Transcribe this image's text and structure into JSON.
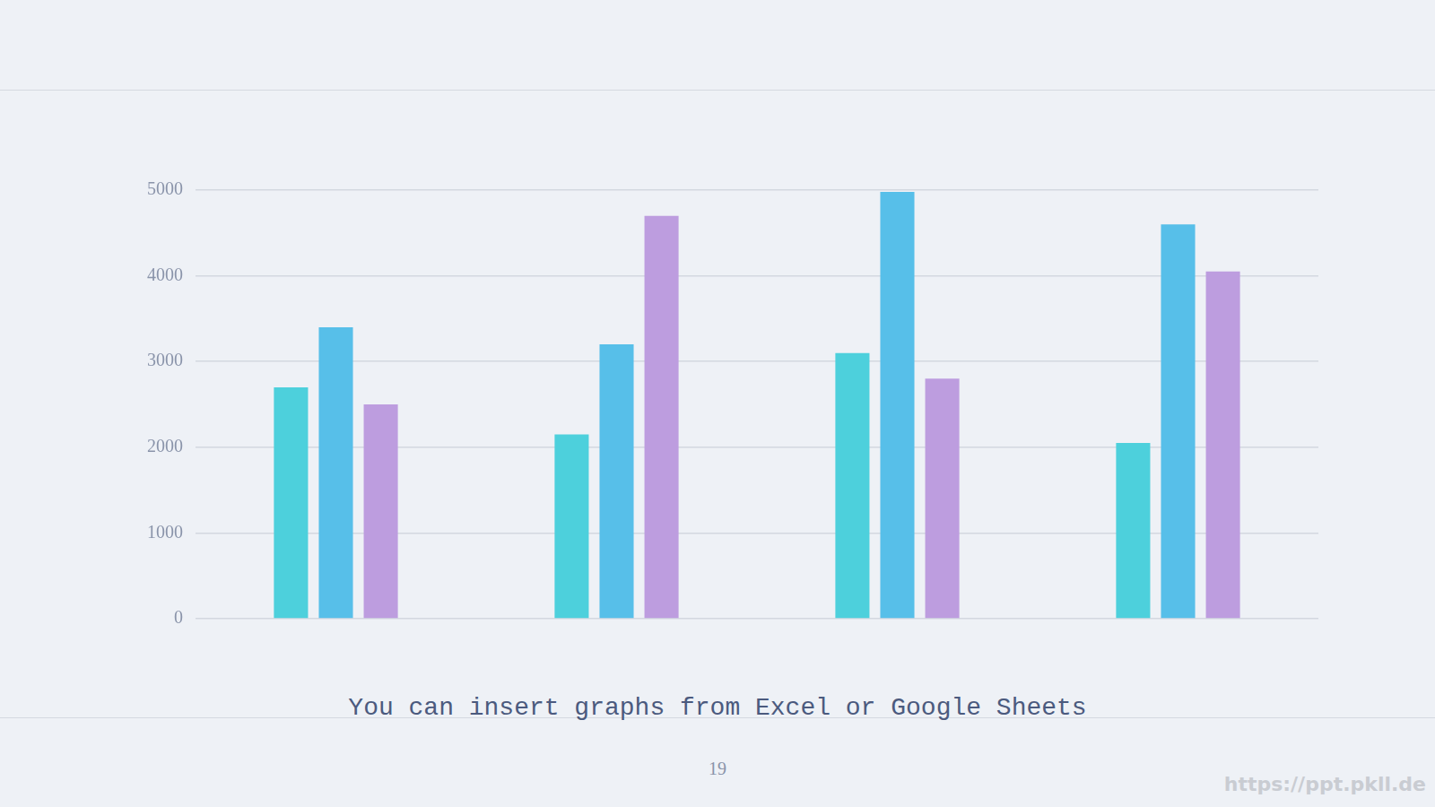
{
  "chart_data": {
    "type": "bar",
    "categories": [
      null,
      null,
      null,
      null
    ],
    "series": [
      {
        "color": "#4dd0dc",
        "values": [
          2700,
          2150,
          3100,
          2050
        ]
      },
      {
        "color": "#57bfe9",
        "values": [
          3400,
          3200,
          4980,
          4600
        ]
      },
      {
        "color": "#bd9ddf",
        "values": [
          2500,
          4700,
          2800,
          4050
        ]
      }
    ],
    "ylim": [
      0,
      5000
    ],
    "yticks": [
      0,
      1000,
      2000,
      3000,
      4000,
      5000
    ],
    "grid": true
  },
  "caption": "You can insert graphs from Excel or Google Sheets",
  "page_number": "19",
  "watermark": "https://ppt.pkll.de"
}
